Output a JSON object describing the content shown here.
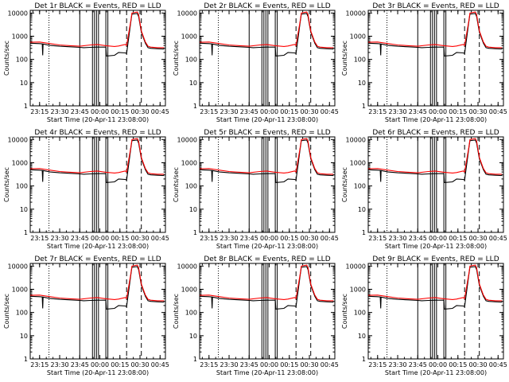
{
  "chart_data": [
    {
      "type": "line",
      "title": "Det 1r BLACK = Events, RED = LLD"
    },
    {
      "type": "line",
      "title": "Det 2r BLACK = Events, RED = LLD"
    },
    {
      "type": "line",
      "title": "Det 3r BLACK = Events, RED = LLD"
    },
    {
      "type": "line",
      "title": "Det 4r BLACK = Events, RED = LLD"
    },
    {
      "type": "line",
      "title": "Det 5r BLACK = Events, RED = LLD"
    },
    {
      "type": "line",
      "title": "Det 6r BLACK = Events, RED = LLD"
    },
    {
      "type": "line",
      "title": "Det 7r BLACK = Events, RED = LLD"
    },
    {
      "type": "line",
      "title": "Det 8r BLACK = Events, RED = LLD"
    },
    {
      "type": "line",
      "title": "Det 9r BLACK = Events, RED = LLD"
    }
  ],
  "shared": {
    "xlabel": "Start Time (20-Apr-11 23:08:00)",
    "ylabel": "Counts/sec",
    "x_tick_labels": [
      "23:15",
      "23:30",
      "23:45",
      "00:00",
      "00:15",
      "00:30",
      "00:45"
    ],
    "x_tick_minutes": [
      7,
      22,
      37,
      52,
      67,
      82,
      97
    ],
    "xlim_minutes": [
      0,
      101
    ],
    "y_scale": "log",
    "y_tick_labels": [
      "1",
      "10",
      "100",
      "1000",
      "10000"
    ],
    "y_tick_values": [
      1,
      10,
      100,
      1000,
      10000
    ],
    "ylim": [
      1,
      13000
    ],
    "solid_vlines_minutes": [
      37,
      46.5,
      48,
      49.5,
      51,
      56.5,
      58
    ],
    "dotted_vlines_minutes": [
      14
    ],
    "dashed_vlines_minutes": [
      72,
      83
    ],
    "series": [
      {
        "name": "Events",
        "color": "#000000",
        "x": [
          0,
          7,
          9,
          9.3,
          9.6,
          15,
          22,
          30,
          37,
          40,
          45,
          50,
          56.5,
          57,
          63,
          66,
          71,
          72,
          75,
          76,
          80,
          81,
          83,
          86,
          88,
          90,
          95,
          100
        ],
        "y": [
          500,
          480,
          470,
          150,
          460,
          400,
          370,
          350,
          330,
          320,
          330,
          340,
          340,
          140,
          150,
          200,
          190,
          180,
          3500,
          9000,
          9500,
          7000,
          1500,
          500,
          320,
          300,
          290,
          280
        ]
      },
      {
        "name": "LLD",
        "color": "#ff0000",
        "x": [
          0,
          7,
          15,
          22,
          30,
          37,
          45,
          50,
          56.5,
          63,
          66,
          71,
          72,
          75,
          76,
          80,
          81,
          83,
          86,
          88,
          90,
          95,
          100
        ],
        "y": [
          550,
          560,
          480,
          420,
          390,
          370,
          420,
          440,
          390,
          360,
          380,
          440,
          400,
          4000,
          10000,
          11000,
          8500,
          1700,
          560,
          370,
          340,
          320,
          320
        ]
      }
    ]
  }
}
